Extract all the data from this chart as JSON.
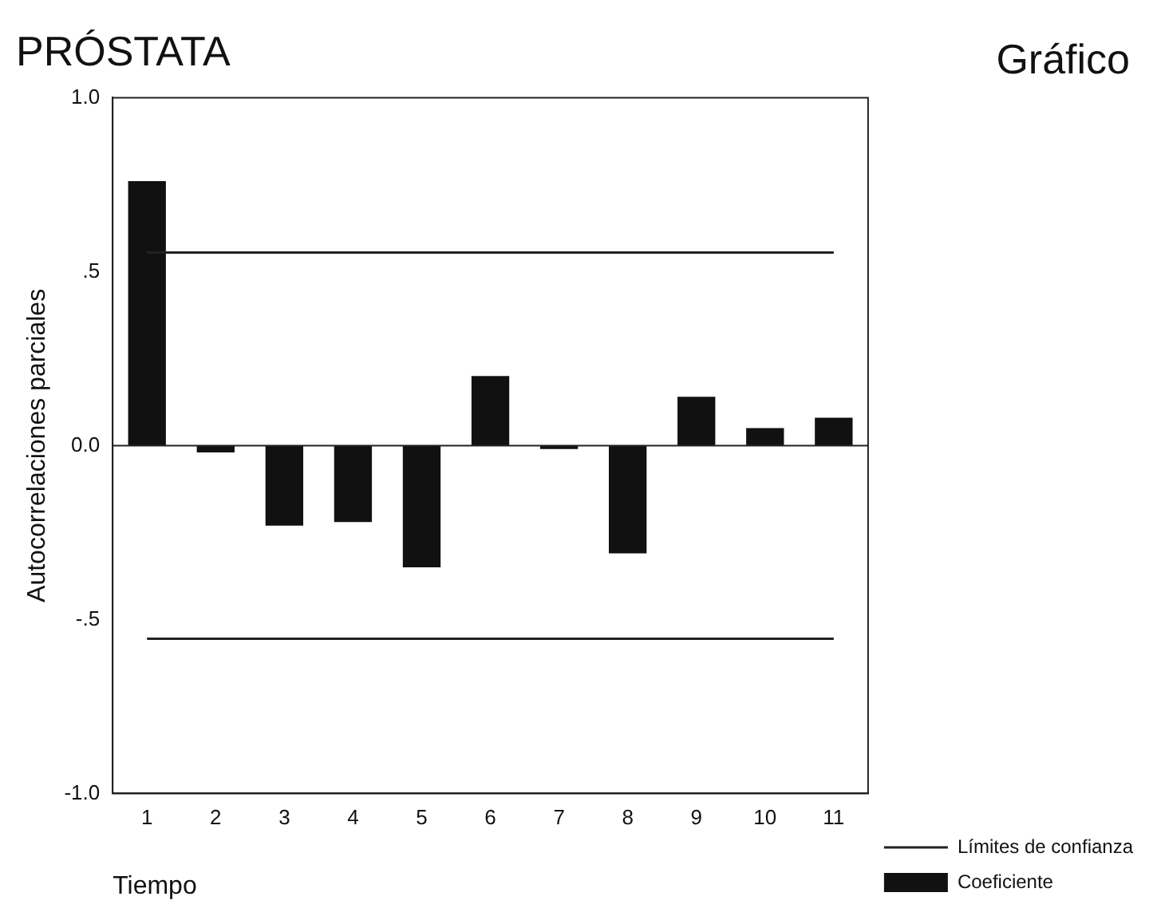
{
  "chart_data": {
    "type": "bar",
    "title": "PRÓSTATA",
    "annotations": [
      "Gráfico"
    ],
    "xlabel": "Tiempo",
    "ylabel": "Autocorrelaciones parciales",
    "categories": [
      "1",
      "2",
      "3",
      "4",
      "5",
      "6",
      "7",
      "8",
      "9",
      "10",
      "11"
    ],
    "ylim": [
      -1,
      1
    ],
    "yticks": [
      {
        "value": -1,
        "label": "-1.0"
      },
      {
        "value": -0.5,
        "label": "-.5"
      },
      {
        "value": 0,
        "label": "0.0"
      },
      {
        "value": 0.5,
        "label": ".5"
      },
      {
        "value": 1,
        "label": "1.0"
      }
    ],
    "grid": false,
    "legend": "right",
    "marker": "none",
    "line_style": "solid",
    "series": [
      {
        "name": "Límites de confianza",
        "type": "line",
        "color": "#222222",
        "values": [
          0.555,
          0.555,
          0.555,
          0.555,
          0.555,
          0.555,
          0.555,
          0.555,
          0.555,
          0.555,
          0.555
        ]
      },
      {
        "type": "line",
        "color": "#222222",
        "values": [
          -0.555,
          -0.555,
          -0.555,
          -0.555,
          -0.555,
          -0.555,
          -0.555,
          -0.555,
          -0.555,
          -0.555,
          -0.555
        ]
      },
      {
        "name": "Coeficiente",
        "color": "#111111",
        "values": [
          0.76,
          -0.02,
          -0.23,
          -0.22,
          -0.35,
          0.2,
          -0.01,
          -0.31,
          0.14,
          0.05,
          0.08
        ]
      }
    ]
  }
}
